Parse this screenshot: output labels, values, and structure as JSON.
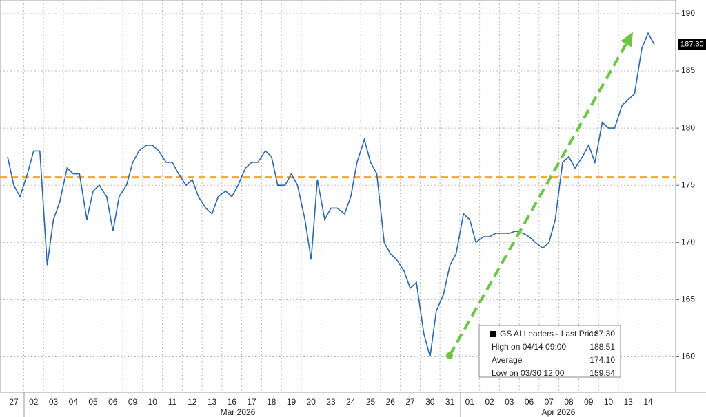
{
  "chart_data": {
    "type": "line",
    "categories": [
      null,
      "27",
      null,
      null,
      "02",
      null,
      null,
      "03",
      null,
      null,
      "04",
      null,
      null,
      "05",
      null,
      null,
      "06",
      null,
      null,
      "09",
      null,
      null,
      "10",
      null,
      null,
      "11",
      null,
      null,
      "12",
      null,
      null,
      "13",
      null,
      null,
      "16",
      null,
      null,
      "17",
      null,
      null,
      "18",
      null,
      null,
      "19",
      null,
      null,
      "20",
      null,
      null,
      "23",
      null,
      null,
      "24",
      null,
      null,
      "25",
      null,
      null,
      "26",
      null,
      null,
      "27",
      null,
      null,
      "30",
      null,
      null,
      "31",
      null,
      null,
      "01",
      null,
      null,
      "02",
      null,
      null,
      "03",
      null,
      null,
      "06",
      null,
      null,
      "07",
      null,
      null,
      "08",
      null,
      null,
      "09",
      null,
      null,
      "10",
      null,
      null,
      "13",
      null,
      null,
      "14",
      null
    ],
    "x_groups": [
      {
        "label": "Mar 2026"
      },
      {
        "label": "Apr 2026"
      }
    ],
    "series": [
      {
        "name": "GS AI Leaders",
        "color": "#2a66b0",
        "values": [
          177.5,
          175,
          174,
          176,
          178,
          178,
          168,
          172,
          173.5,
          176.5,
          176,
          176,
          172,
          174.5,
          175,
          174,
          171,
          174,
          175,
          177,
          178,
          178.5,
          178.5,
          178,
          177,
          177,
          176,
          175,
          175.5,
          174,
          173,
          172.5,
          174,
          174.5,
          174,
          175,
          176.5,
          177,
          177,
          178,
          177.5,
          175,
          175,
          176,
          175,
          172,
          168.5,
          175.5,
          172,
          173,
          173,
          172.5,
          174,
          177,
          179,
          177,
          176,
          170,
          169,
          168.5,
          167.5,
          166,
          166.5,
          162,
          160,
          164,
          165.5,
          168,
          169,
          172.5,
          172,
          170,
          170.5,
          170.5,
          170.8,
          170.8,
          170.8,
          171,
          170.8,
          170.5,
          170,
          169.5,
          170,
          172,
          177,
          177.5,
          176.5,
          177.5,
          178.5,
          177,
          180.5,
          180,
          180,
          182,
          182.5,
          183,
          187,
          188.3,
          187.3
        ]
      }
    ],
    "reference_line": {
      "value": 175.7,
      "color": "#f5a623"
    },
    "trend_arrow": {
      "from": 160.1,
      "to": 188.4,
      "color": "#6cc644"
    },
    "ylim": [
      156.9,
      191.2
    ],
    "yticks": [
      160,
      165,
      170,
      175,
      180,
      185,
      190
    ],
    "grid": true,
    "legend": [
      {
        "label": "GS AI Leaders - Last Price",
        "value": 187.3,
        "value_label": "187.30"
      },
      {
        "label": "High on 04/14 09:00",
        "value": 188.51,
        "value_label": "188.51"
      },
      {
        "label": "Average",
        "value": 174.1,
        "value_label": "174.10"
      },
      {
        "label": "Low on 03/30 12:00",
        "value": 159.54,
        "value_label": "159.54"
      }
    ]
  }
}
